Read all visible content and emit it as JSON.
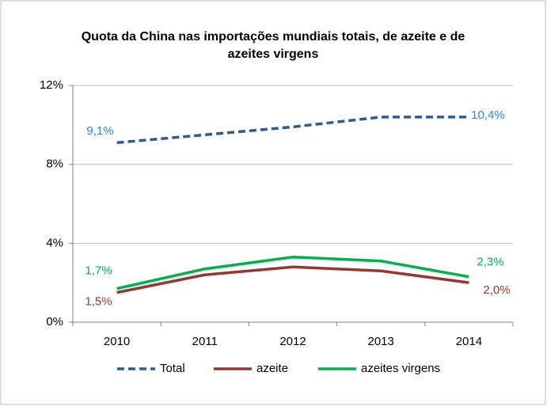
{
  "chart_data": {
    "type": "line",
    "title": [
      "Quota da China nas importações mundiais totais, de azeite e de",
      "azeites virgens"
    ],
    "categories": [
      "2010",
      "2011",
      "2012",
      "2013",
      "2014"
    ],
    "series": [
      {
        "name": "Total",
        "color": "#2e5c8e",
        "dashed": true,
        "label_color": "#2a8ad0",
        "values": [
          9.1,
          9.5,
          9.9,
          10.4,
          10.4
        ],
        "value_labels": [
          "9,1%",
          null,
          null,
          null,
          "10,4%"
        ]
      },
      {
        "name": "azeite",
        "color": "#953735",
        "dashed": false,
        "label_color": "#953735",
        "values": [
          1.5,
          2.4,
          2.8,
          2.6,
          2.0
        ],
        "value_labels": [
          "1,5%",
          null,
          null,
          null,
          "2,0%"
        ]
      },
      {
        "name": "azeites virgens",
        "color": "#00b050",
        "dashed": false,
        "label_color": "#00b050",
        "values": [
          1.7,
          2.7,
          3.3,
          3.1,
          2.3
        ],
        "value_labels": [
          "1,7%",
          null,
          null,
          null,
          "2,3%"
        ]
      }
    ],
    "ylim": [
      0,
      12
    ],
    "yticks": [
      {
        "value": 0,
        "label": "0%"
      },
      {
        "value": 4,
        "label": "4%"
      },
      {
        "value": 8,
        "label": "8%"
      },
      {
        "value": 12,
        "label": "12%"
      }
    ],
    "grid": true,
    "legend": "bottom"
  }
}
